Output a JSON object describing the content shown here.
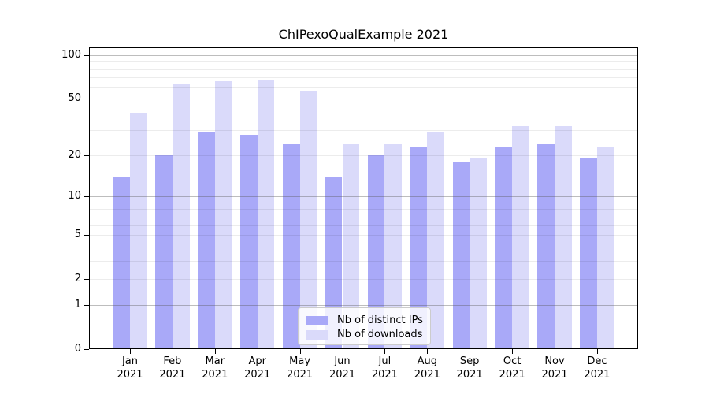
{
  "title": "ChIPexoQualExample 2021",
  "colors": {
    "distinct_ips_bar": "#a9a9f8",
    "downloads_bar": "#dadafa",
    "axis": "#000000",
    "background": "#ffffff"
  },
  "legend": {
    "items": [
      {
        "label": "Nb of distinct IPs",
        "color": "#a9a9f8"
      },
      {
        "label": "Nb of downloads",
        "color": "#dadafa"
      }
    ]
  },
  "y_axis": {
    "tick_labels": [
      "100",
      "50",
      "20",
      "10",
      "5",
      "2",
      "1",
      "0"
    ]
  },
  "chart_data": {
    "type": "bar",
    "title": "ChIPexoQualExample 2021",
    "categories": [
      "Jan 2021",
      "Feb 2021",
      "Mar 2021",
      "Apr 2021",
      "May 2021",
      "Jun 2021",
      "Jul 2021",
      "Aug 2021",
      "Sep 2021",
      "Oct 2021",
      "Nov 2021",
      "Dec 2021"
    ],
    "series": [
      {
        "name": "Nb of distinct IPs",
        "color": "#a9a9f8",
        "values": [
          14,
          20,
          29,
          28,
          24,
          14,
          20,
          23,
          18,
          23,
          24,
          19
        ]
      },
      {
        "name": "Nb of downloads",
        "color": "#dadafa",
        "values": [
          40,
          64,
          66,
          67,
          56,
          24,
          24,
          29,
          19,
          32,
          32,
          23
        ]
      }
    ],
    "xlabel": "",
    "ylabel": "",
    "yscale": "log1p",
    "yticks": [
      0,
      1,
      2,
      5,
      10,
      20,
      50,
      100
    ],
    "ylim": [
      0,
      113
    ],
    "grid": true,
    "legend_position": "lower center"
  }
}
